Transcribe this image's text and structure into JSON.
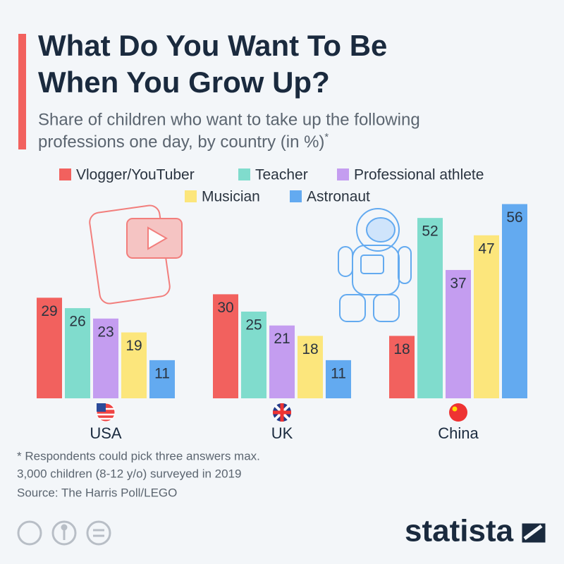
{
  "chart_data": {
    "type": "bar",
    "title": [
      "What Do You Want To Be",
      "When You Grow Up?"
    ],
    "subtitle": [
      "Share of children who want to take up the following",
      "professions one day, by country (in %)"
    ],
    "subtitle_mark": "*",
    "categories": [
      "USA",
      "UK",
      "China"
    ],
    "series": [
      {
        "name": "Vlogger/YouTuber",
        "color": "#f2615e",
        "values": [
          29,
          30,
          18
        ]
      },
      {
        "name": "Teacher",
        "color": "#80dccd",
        "values": [
          26,
          25,
          52
        ]
      },
      {
        "name": "Professional athlete",
        "color": "#c49df0",
        "values": [
          23,
          21,
          37
        ]
      },
      {
        "name": "Musician",
        "color": "#fce67c",
        "values": [
          19,
          18,
          47
        ]
      },
      {
        "name": "Astronaut",
        "color": "#63aaf0",
        "values": [
          11,
          11,
          56
        ]
      }
    ],
    "footnotes": [
      "* Respondents could pick three answers max.",
      "3,000 children (8-12 y/o) surveyed in 2019",
      "Source: The Harris Poll/LEGO"
    ],
    "brand": "statista"
  }
}
